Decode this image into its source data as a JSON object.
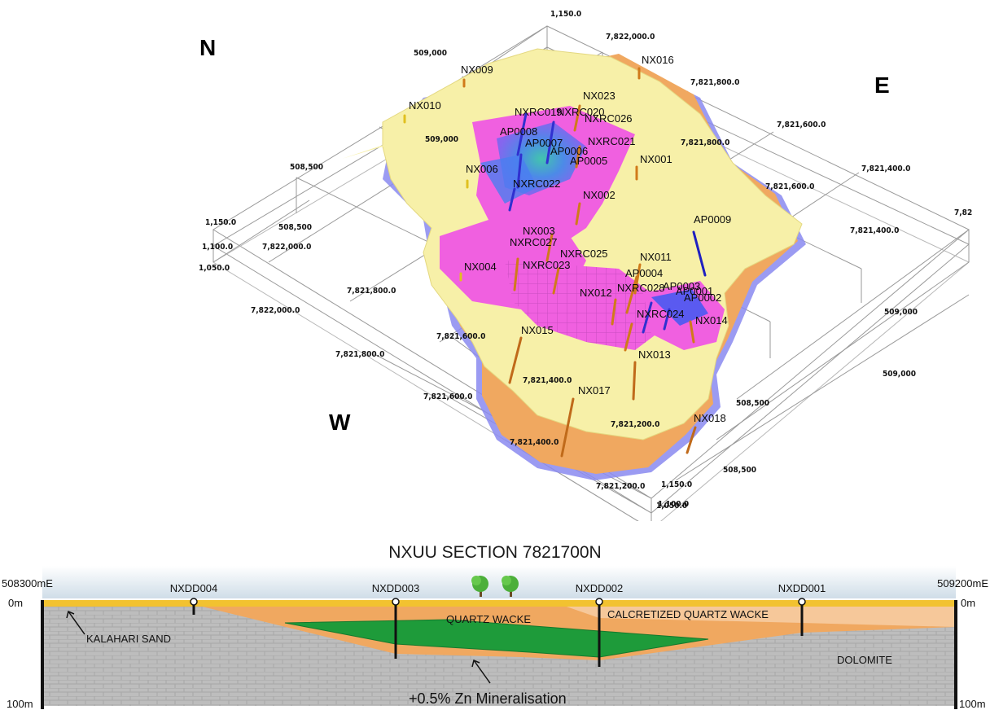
{
  "model3d": {
    "compass": {
      "north": "N",
      "east": "E",
      "west": "W"
    },
    "elevation_labels": [
      "1,150.0",
      "1,100.0",
      "1,050.0"
    ],
    "northing_labels": [
      "7,822,000.0",
      "7,821,800.0",
      "7,821,600.0",
      "7,821,400.0",
      "7,821,200.0",
      "7,82"
    ],
    "easting_labels": [
      "508,500",
      "509,000"
    ],
    "drillholes": [
      "NX009",
      "NX010",
      "NX016",
      "NX023",
      "NXRC019",
      "NXRC020",
      "NXRC026",
      "AP0008",
      "AP0007",
      "AP0006",
      "NXRC021",
      "AP0005",
      "NX001",
      "NX006",
      "NXRC022",
      "NX002",
      "AP0009",
      "NX003",
      "NXRC027",
      "NXRC025",
      "NX011",
      "NX004",
      "NXRC023",
      "AP0004",
      "NX012",
      "NXRC028",
      "AP0003",
      "AP0001",
      "AP0002",
      "NXRC024",
      "NX014",
      "NX015",
      "NX013",
      "NX017",
      "NX018"
    ]
  },
  "section": {
    "title": "NXUU SECTION 7821700N",
    "left_easting": "508300mE",
    "right_easting": "509200mE",
    "depth_top": "0m",
    "depth_bottom": "100m",
    "holes": [
      "NXDD004",
      "NXDD003",
      "NXDD002",
      "NXDD001"
    ],
    "units": {
      "sand": "KALAHARI SAND",
      "quartz": "QUARTZ WACKE",
      "calcrete": "CALCRETIZED QUARTZ WACKE",
      "dolomite": "DOLOMITE",
      "mineral": "+0.5% Zn Mineralisation"
    },
    "colors": {
      "sand": "#f2c230",
      "wacke": "#f0a860",
      "calcrete": "#f6c89a",
      "dolomite": "#bdbdbd",
      "mineral": "#1e9b3a",
      "sky": "#dde8f0"
    }
  }
}
